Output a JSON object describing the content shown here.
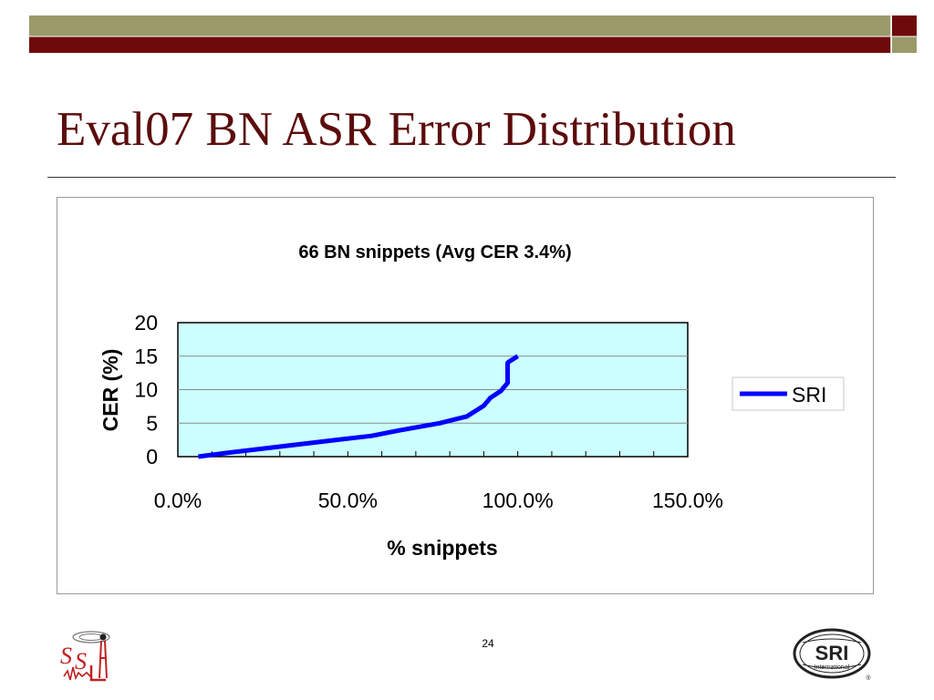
{
  "slide": {
    "title": "Eval07 BN ASR Error Distribution",
    "page_number": "24"
  },
  "colors": {
    "title": "#5c0c0c",
    "top_bar_olive": "#9b9a6b",
    "top_bar_maroon": "#6e0a0a",
    "plot_bg": "#ccffff",
    "series_line": "#0000ff"
  },
  "logos": {
    "left": "SSLI",
    "right": "SRI International"
  },
  "chart_data": {
    "type": "line",
    "title": "66 BN snippets (Avg CER 3.4%)",
    "xlabel": "% snippets",
    "ylabel": "CER (%)",
    "xlim": [
      0,
      1.5
    ],
    "ylim": [
      0,
      20
    ],
    "x_ticks": [
      0,
      0.5,
      1.0,
      1.5
    ],
    "x_tick_labels": [
      "0.0%",
      "50.0%",
      "100.0%",
      "150.0%"
    ],
    "y_ticks": [
      0,
      5,
      10,
      15,
      20
    ],
    "y_tick_labels": [
      "0",
      "5",
      "10",
      "15",
      "20"
    ],
    "grid": "horizontal",
    "legend": "right",
    "series": [
      {
        "name": "SRI",
        "x": [
          0.06,
          0.15,
          0.3,
          0.45,
          0.57,
          0.65,
          0.77,
          0.85,
          0.9,
          0.92,
          0.95,
          0.97,
          0.97,
          0.975,
          1.0
        ],
        "y": [
          0.0,
          0.6,
          1.5,
          2.4,
          3.1,
          3.9,
          5.0,
          6.0,
          7.6,
          8.8,
          9.8,
          11.0,
          14.0,
          14.2,
          15.0
        ]
      }
    ]
  }
}
